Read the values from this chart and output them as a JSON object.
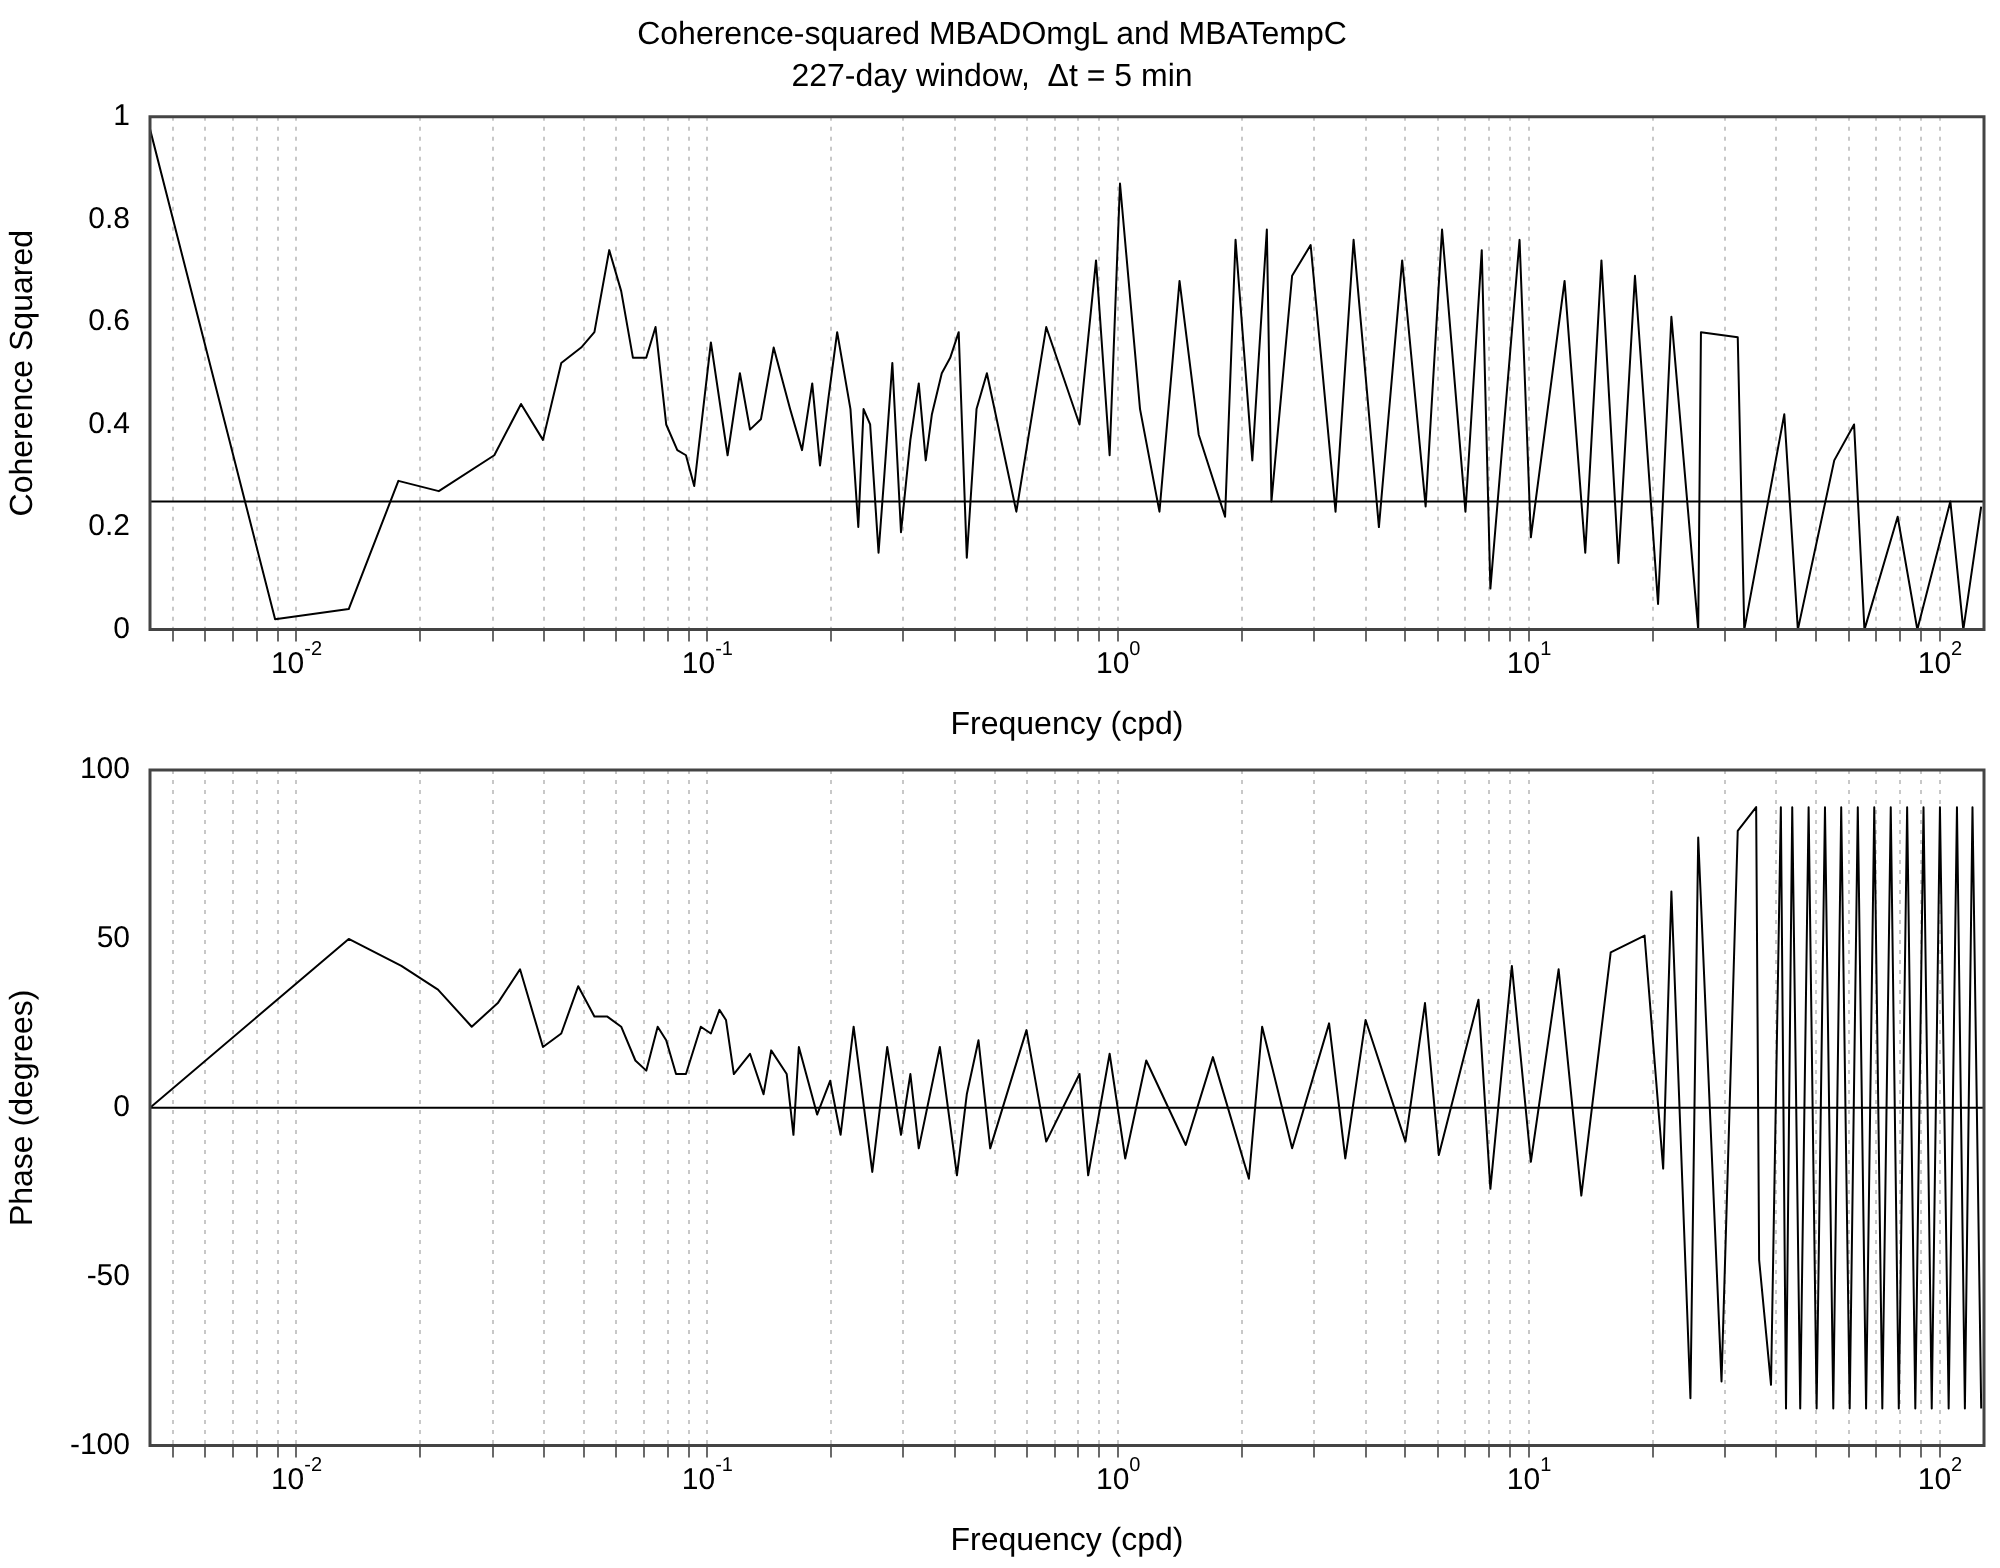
{
  "chart_data": [
    {
      "type": "line",
      "title": "Coherence-squared MBADOmgL and MBATempC",
      "subtitle": "227-day window,  Δt = 5 min",
      "xlabel": "Frequency (cpd)",
      "ylabel": "Coherence Squared",
      "log": "x",
      "grid": "x",
      "xlim": [
        0.0044,
        128
      ],
      "ylim": [
        0,
        1
      ],
      "yticks": [
        0,
        0.2,
        0.4,
        0.6,
        0.8,
        1
      ],
      "xticks": [
        {
          "value": 0.005,
          "label": null
        },
        {
          "value": 0.006,
          "label": null
        },
        {
          "value": 0.007,
          "label": null
        },
        {
          "value": 0.008,
          "label": null
        },
        {
          "value": 0.009,
          "label": null
        },
        {
          "value": 0.01,
          "label": "10$^{-2}$"
        },
        {
          "value": 0.02,
          "label": null
        },
        {
          "value": 0.03,
          "label": null
        },
        {
          "value": 0.04,
          "label": null
        },
        {
          "value": 0.05,
          "label": null
        },
        {
          "value": 0.06,
          "label": null
        },
        {
          "value": 0.07,
          "label": null
        },
        {
          "value": 0.08,
          "label": null
        },
        {
          "value": 0.09,
          "label": null
        },
        {
          "value": 0.1,
          "label": "10$^{-1}$"
        },
        {
          "value": 0.2,
          "label": null
        },
        {
          "value": 0.3,
          "label": null
        },
        {
          "value": 0.4,
          "label": null
        },
        {
          "value": 0.5,
          "label": null
        },
        {
          "value": 0.6,
          "label": null
        },
        {
          "value": 0.7,
          "label": null
        },
        {
          "value": 0.8,
          "label": null
        },
        {
          "value": 0.9,
          "label": null
        },
        {
          "value": 1,
          "label": "10$^{0}$"
        },
        {
          "value": 2,
          "label": null
        },
        {
          "value": 3,
          "label": null
        },
        {
          "value": 4,
          "label": null
        },
        {
          "value": 5,
          "label": null
        },
        {
          "value": 6,
          "label": null
        },
        {
          "value": 7,
          "label": null
        },
        {
          "value": 8,
          "label": null
        },
        {
          "value": 9,
          "label": null
        },
        {
          "value": 10,
          "label": "10$^{1}$"
        },
        {
          "value": 20,
          "label": null
        },
        {
          "value": 30,
          "label": null
        },
        {
          "value": 40,
          "label": null
        },
        {
          "value": 50,
          "label": null
        },
        {
          "value": 60,
          "label": null
        },
        {
          "value": 70,
          "label": null
        },
        {
          "value": 80,
          "label": null
        },
        {
          "value": 90,
          "label": null
        },
        {
          "value": 100,
          "label": "10$^{2}$"
        }
      ],
      "ref_lines": [
        {
          "axis": "y",
          "value": 0.25,
          "color": "#000000"
        }
      ],
      "series": [
        {
          "color": "#000000",
          "x": [
            0.0044,
            0.00887,
            0.0134,
            0.0177,
            0.0222,
            0.0303,
            0.0352,
            0.0398,
            0.0441,
            0.0493,
            0.0531,
            0.0577,
            0.0617,
            0.0659,
            0.071,
            0.0748,
            0.0794,
            0.0845,
            0.0887,
            0.0929,
            0.102,
            0.112,
            0.12,
            0.127,
            0.135,
            0.145,
            0.159,
            0.17,
            0.18,
            0.188,
            0.197,
            0.207,
            0.223,
            0.233,
            0.24,
            0.249,
            0.261,
            0.269,
            0.282,
            0.296,
            0.312,
            0.327,
            0.34,
            0.352,
            0.372,
            0.39,
            0.409,
            0.428,
            0.452,
            0.479,
            0.565,
            0.668,
            0.805,
            0.883,
            0.953,
            1.01,
            1.13,
            1.26,
            1.41,
            1.57,
            1.82,
            1.93,
            2.12,
            2.3,
            2.36,
            2.65,
            2.94,
            3.38,
            3.74,
            4.31,
            4.91,
            5.6,
            6.14,
            7,
            7.67,
            8.05,
            9.48,
            10.1,
            12.2,
            13.7,
            15,
            16.5,
            18.1,
            20.6,
            22.2,
            25.8,
            26.2,
            32.2,
            33.4,
            41.8,
            45.1,
            55.3,
            61.8,
            65.5,
            78.9,
            88.1,
            106,
            114,
            126
          ],
          "values": [
            0.976,
            0.02,
            0.04,
            0.29,
            0.27,
            0.34,
            0.44,
            0.37,
            0.52,
            0.55,
            0.58,
            0.74,
            0.66,
            0.53,
            0.53,
            0.59,
            0.4,
            0.35,
            0.34,
            0.28,
            0.56,
            0.34,
            0.5,
            0.39,
            0.41,
            0.55,
            0.43,
            0.35,
            0.48,
            0.32,
            0.45,
            0.58,
            0.43,
            0.2,
            0.43,
            0.4,
            0.15,
            0.29,
            0.52,
            0.19,
            0.37,
            0.48,
            0.33,
            0.42,
            0.5,
            0.53,
            0.58,
            0.14,
            0.43,
            0.5,
            0.23,
            0.59,
            0.4,
            0.72,
            0.34,
            0.87,
            0.43,
            0.23,
            0.68,
            0.38,
            0.22,
            0.76,
            0.33,
            0.78,
            0.25,
            0.69,
            0.75,
            0.23,
            0.76,
            0.2,
            0.72,
            0.24,
            0.78,
            0.23,
            0.74,
            0.08,
            0.76,
            0.18,
            0.68,
            0.15,
            0.72,
            0.13,
            0.69,
            0.05,
            0.61,
            0,
            0.58,
            0.57,
            0,
            0.42,
            0,
            0.33,
            0.4,
            0,
            0.22,
            0,
            0.25,
            0,
            0.24
          ]
        }
      ]
    },
    {
      "type": "line",
      "xlabel": "Frequency (cpd)",
      "ylabel": "Phase (degrees)",
      "log": "x",
      "grid": "x",
      "xlim": [
        0.0044,
        128
      ],
      "ylim": [
        -100,
        100
      ],
      "yticks": [
        -100,
        -50,
        0,
        50,
        100
      ],
      "xticks": [
        {
          "value": 0.005,
          "label": null
        },
        {
          "value": 0.006,
          "label": null
        },
        {
          "value": 0.007,
          "label": null
        },
        {
          "value": 0.008,
          "label": null
        },
        {
          "value": 0.009,
          "label": null
        },
        {
          "value": 0.01,
          "label": "10$^{-2}$"
        },
        {
          "value": 0.02,
          "label": null
        },
        {
          "value": 0.03,
          "label": null
        },
        {
          "value": 0.04,
          "label": null
        },
        {
          "value": 0.05,
          "label": null
        },
        {
          "value": 0.06,
          "label": null
        },
        {
          "value": 0.07,
          "label": null
        },
        {
          "value": 0.08,
          "label": null
        },
        {
          "value": 0.09,
          "label": null
        },
        {
          "value": 0.1,
          "label": "10$^{-1}$"
        },
        {
          "value": 0.2,
          "label": null
        },
        {
          "value": 0.3,
          "label": null
        },
        {
          "value": 0.4,
          "label": null
        },
        {
          "value": 0.5,
          "label": null
        },
        {
          "value": 0.6,
          "label": null
        },
        {
          "value": 0.7,
          "label": null
        },
        {
          "value": 0.8,
          "label": null
        },
        {
          "value": 0.9,
          "label": null
        },
        {
          "value": 1,
          "label": "10$^{0}$"
        },
        {
          "value": 2,
          "label": null
        },
        {
          "value": 3,
          "label": null
        },
        {
          "value": 4,
          "label": null
        },
        {
          "value": 5,
          "label": null
        },
        {
          "value": 6,
          "label": null
        },
        {
          "value": 7,
          "label": null
        },
        {
          "value": 8,
          "label": null
        },
        {
          "value": 9,
          "label": null
        },
        {
          "value": 10,
          "label": "10$^{1}$"
        },
        {
          "value": 20,
          "label": null
        },
        {
          "value": 30,
          "label": null
        },
        {
          "value": 40,
          "label": null
        },
        {
          "value": 50,
          "label": null
        },
        {
          "value": 60,
          "label": null
        },
        {
          "value": 70,
          "label": null
        },
        {
          "value": 80,
          "label": null
        },
        {
          "value": 90,
          "label": null
        },
        {
          "value": 100,
          "label": "10$^{2}$"
        }
      ],
      "ref_lines": [
        {
          "axis": "y",
          "value": 0,
          "color": "#000000"
        }
      ],
      "series": [
        {
          "color": "#000000",
          "x": [
            0.0044,
            0.0134,
            0.018,
            0.0221,
            0.0267,
            0.0309,
            0.035,
            0.0398,
            0.0441,
            0.0485,
            0.0531,
            0.0571,
            0.0617,
            0.0668,
            0.071,
            0.0757,
            0.0794,
            0.0839,
            0.0887,
            0.0964,
            0.102,
            0.107,
            0.111,
            0.116,
            0.127,
            0.137,
            0.143,
            0.156,
            0.162,
            0.167,
            0.185,
            0.199,
            0.211,
            0.227,
            0.252,
            0.274,
            0.296,
            0.312,
            0.327,
            0.368,
            0.405,
            0.428,
            0.457,
            0.488,
            0.598,
            0.668,
            0.805,
            0.845,
            0.953,
            1.04,
            1.17,
            1.46,
            1.7,
            2.08,
            2.24,
            2.65,
            3.26,
            3.57,
            4,
            5,
            5.58,
            6.03,
            7.53,
            8.05,
            9.08,
            10.1,
            11.8,
            13.4,
            15.8,
            19.1,
            21.2,
            22.2,
            24.7,
            25.8,
            29.4,
            32.2,
            35.7,
            36.3,
            38.8,
            41,
            42.2,
            43.7,
            45.7,
            47.9,
            50.1,
            52.5,
            55,
            57.5,
            60.3,
            63.1,
            66.1,
            69.2,
            72.4,
            75.9,
            79.4,
            83.2,
            87.1,
            91.2,
            95.5,
            100,
            105,
            110,
            115,
            120,
            126
          ],
          "values": [
            0,
            50,
            42,
            35,
            24,
            31,
            41,
            18,
            22,
            36,
            27,
            27,
            24,
            14,
            11,
            24,
            20,
            10,
            10,
            24,
            22,
            29,
            26,
            10,
            16,
            4,
            17,
            10,
            -8,
            18,
            -2,
            8,
            -8,
            24,
            -19,
            18,
            -8,
            10,
            -12,
            18,
            -20,
            4,
            20,
            -12,
            23,
            -10,
            10,
            -20,
            16,
            -15,
            14,
            -11,
            15,
            -21,
            24,
            -12,
            25,
            -15,
            26,
            -10,
            31,
            -14,
            32,
            -24,
            42,
            -16,
            41,
            -26,
            46,
            51,
            -18,
            64,
            -86,
            80,
            -81,
            82,
            89,
            -45,
            -82,
            89,
            -89,
            89,
            -89,
            89,
            -89,
            89,
            -89,
            89,
            -89,
            89,
            -89,
            89,
            -89,
            89,
            -89,
            89,
            -89,
            89,
            -89,
            89,
            -89,
            89,
            -89,
            89,
            -89
          ]
        }
      ]
    }
  ]
}
